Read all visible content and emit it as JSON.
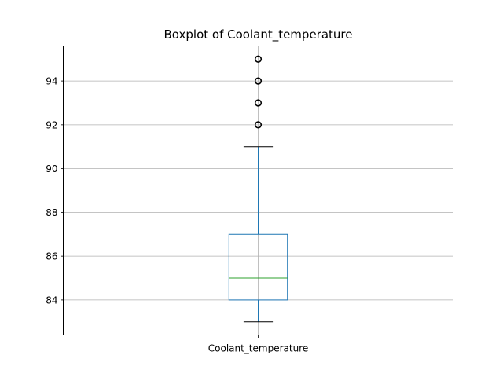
{
  "chart_data": {
    "type": "box",
    "title": "Boxplot of Coolant_temperature",
    "xlabel": "",
    "ylabel": "",
    "categories": [
      "Coolant_temperature"
    ],
    "ylim": [
      82.4,
      95.6
    ],
    "yticks": [
      84,
      86,
      88,
      90,
      92,
      94
    ],
    "grid": true,
    "boxes": [
      {
        "category": "Coolant_temperature",
        "whisker_low": 83,
        "q1": 84,
        "median": 85,
        "q3": 87,
        "whisker_high": 91,
        "outliers": [
          92,
          93,
          94,
          95
        ]
      }
    ],
    "colors": {
      "box": "#1f77b4",
      "median": "#2ca02c",
      "whisker_cap": "#000000",
      "outlier": "#000000",
      "grid": "#b0b0b0"
    }
  }
}
